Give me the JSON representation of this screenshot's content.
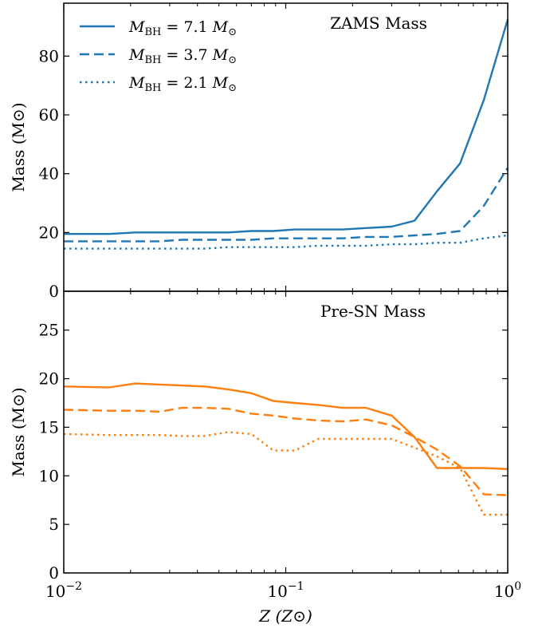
{
  "chart_data": [
    {
      "type": "line",
      "title": "",
      "annotation": "ZAMS Mass",
      "xlabel": "",
      "ylabel": "Mass (M⊙)",
      "xscale": "log",
      "xlim": [
        0.01,
        1
      ],
      "ylim": [
        0,
        98
      ],
      "yticks": [
        0,
        20,
        40,
        60,
        80
      ],
      "color": "#1f77b4",
      "legend_position": "top-left",
      "grid": false,
      "x": [
        0.01,
        0.016,
        0.021,
        0.027,
        0.034,
        0.043,
        0.055,
        0.07,
        0.088,
        0.11,
        0.14,
        0.18,
        0.23,
        0.3,
        0.38,
        0.48,
        0.61,
        0.78,
        1.0
      ],
      "series": [
        {
          "name": "M_BH = 7.1 M⊙",
          "name_parts": {
            "sub": "BH",
            "value": "= 7.1"
          },
          "dash": "solid",
          "values": [
            19.5,
            19.5,
            20.0,
            20.0,
            20.0,
            20.0,
            20.0,
            20.5,
            20.5,
            21.0,
            21.0,
            21.0,
            21.5,
            22.0,
            24.0,
            34.0,
            43.5,
            65.0,
            92.5
          ]
        },
        {
          "name": "M_BH = 3.7 M⊙",
          "name_parts": {
            "sub": "BH",
            "value": "= 3.7"
          },
          "dash": "dashed",
          "values": [
            17.0,
            17.0,
            17.0,
            17.0,
            17.5,
            17.5,
            17.5,
            17.5,
            18.0,
            18.0,
            18.0,
            18.0,
            18.5,
            18.5,
            19.0,
            19.5,
            20.5,
            29.0,
            42.0
          ]
        },
        {
          "name": "M_BH = 2.1 M⊙",
          "name_parts": {
            "sub": "BH",
            "value": "= 2.1"
          },
          "dash": "dotted",
          "values": [
            14.5,
            14.5,
            14.5,
            14.5,
            14.5,
            14.5,
            15.0,
            15.0,
            15.0,
            15.0,
            15.5,
            15.5,
            15.5,
            16.0,
            16.0,
            16.5,
            16.5,
            18.0,
            19.0
          ]
        }
      ]
    },
    {
      "type": "line",
      "title": "",
      "annotation": "Pre-SN Mass",
      "xlabel": "Z (Z⊙)",
      "ylabel": "Mass (M⊙)",
      "xscale": "log",
      "xlim": [
        0.01,
        1
      ],
      "xticks_labels": [
        "10",
        "10",
        "10"
      ],
      "xticks_exponents": [
        "−2",
        "−1",
        "0"
      ],
      "xticks_values": [
        0.01,
        0.1,
        1
      ],
      "ylim": [
        0,
        29
      ],
      "yticks": [
        0,
        5,
        10,
        15,
        20,
        25
      ],
      "color": "#ff7f0e",
      "grid": false,
      "x": [
        0.01,
        0.016,
        0.021,
        0.027,
        0.034,
        0.043,
        0.055,
        0.07,
        0.088,
        0.11,
        0.14,
        0.18,
        0.23,
        0.3,
        0.38,
        0.48,
        0.61,
        0.78,
        1.0
      ],
      "series": [
        {
          "dash": "solid",
          "values": [
            19.2,
            19.1,
            19.5,
            19.4,
            19.3,
            19.2,
            18.9,
            18.5,
            17.7,
            17.5,
            17.3,
            17.0,
            17.0,
            16.2,
            14.0,
            10.8,
            10.8,
            10.8,
            10.7
          ]
        },
        {
          "dash": "dashed",
          "values": [
            16.8,
            16.7,
            16.7,
            16.6,
            17.0,
            17.0,
            16.9,
            16.4,
            16.2,
            15.9,
            15.7,
            15.6,
            15.8,
            15.2,
            14.0,
            12.7,
            11.0,
            8.1,
            8.0
          ]
        },
        {
          "dash": "dotted",
          "values": [
            14.3,
            14.2,
            14.2,
            14.2,
            14.1,
            14.1,
            14.5,
            14.3,
            12.6,
            12.6,
            13.8,
            13.8,
            13.8,
            13.8,
            12.9,
            12.0,
            10.8,
            6.0,
            6.0
          ]
        }
      ]
    }
  ]
}
